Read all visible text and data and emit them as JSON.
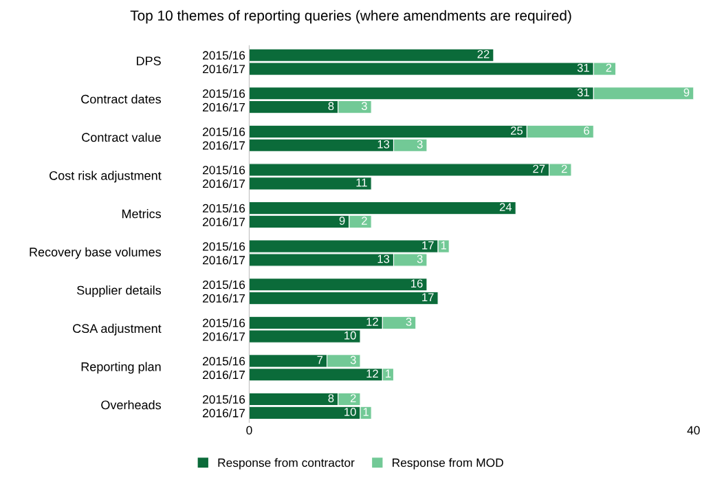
{
  "chart_data": {
    "type": "bar",
    "orientation": "horizontal",
    "stacked": true,
    "title": "Top 10 themes of reporting queries (where amendments are required)",
    "categories": [
      "2015/16",
      "2016/17",
      "2015/16",
      "2016/17",
      "2015/16",
      "2016/17",
      "2015/16",
      "2016/17",
      "2015/16",
      "2016/17",
      "2015/16",
      "2016/17",
      "2015/16",
      "2016/17",
      "2015/16",
      "2016/17",
      "2015/16",
      "2016/17",
      "2015/16",
      "2016/17"
    ],
    "annotations": [
      "DPS",
      "Contract dates",
      "Contract value",
      "Cost risk adjustment",
      "Metrics",
      "Recovery base volumes",
      "Supplier details",
      "CSA adjustment",
      "Reporting plan",
      "Overheads"
    ],
    "series": [
      {
        "name": "Response from contractor",
        "color": "#0b6b3a",
        "values": [
          22,
          31,
          31,
          8,
          25,
          13,
          27,
          11,
          24,
          9,
          17,
          13,
          16,
          17,
          12,
          10,
          7,
          12,
          8,
          10
        ]
      },
      {
        "name": "Response from MOD",
        "color": "#72c996",
        "values": [
          null,
          2,
          9,
          3,
          6,
          3,
          2,
          null,
          null,
          2,
          1,
          3,
          null,
          null,
          3,
          null,
          3,
          1,
          2,
          1
        ]
      }
    ],
    "xlim": [
      0,
      40
    ],
    "xticks": [
      0,
      40
    ],
    "grid": false,
    "legend": "bottom",
    "data_labels": true
  }
}
